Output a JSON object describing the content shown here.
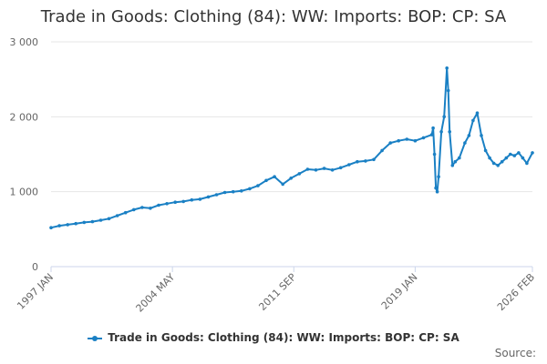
{
  "chart_data": {
    "type": "line",
    "title": "Trade in Goods: Clothing (84): WW: Imports: BOP: CP: SA",
    "xlabel": "",
    "ylabel": "",
    "ylim": [
      0,
      3000
    ],
    "y_ticks": [
      "0",
      "1 000",
      "2 000",
      "3 000"
    ],
    "x_ticks": [
      "1997 JAN",
      "2004 MAY",
      "2011 SEP",
      "2019 JAN",
      "2026 FEB"
    ],
    "grid": true,
    "legend_position": "bottom",
    "color": "#1a80c4",
    "series": [
      {
        "name": "Trade in Goods: Clothing (84): WW: Imports: BOP: CP: SA",
        "points": [
          [
            "1997-01",
            520
          ],
          [
            "1997-07",
            545
          ],
          [
            "1998-01",
            560
          ],
          [
            "1998-07",
            575
          ],
          [
            "1999-01",
            590
          ],
          [
            "1999-07",
            600
          ],
          [
            "2000-01",
            620
          ],
          [
            "2000-07",
            640
          ],
          [
            "2001-01",
            680
          ],
          [
            "2001-07",
            720
          ],
          [
            "2002-01",
            760
          ],
          [
            "2002-07",
            790
          ],
          [
            "2003-01",
            780
          ],
          [
            "2003-07",
            820
          ],
          [
            "2004-01",
            840
          ],
          [
            "2004-07",
            860
          ],
          [
            "2005-01",
            870
          ],
          [
            "2005-07",
            890
          ],
          [
            "2006-01",
            900
          ],
          [
            "2006-07",
            930
          ],
          [
            "2007-01",
            960
          ],
          [
            "2007-07",
            990
          ],
          [
            "2008-01",
            1000
          ],
          [
            "2008-07",
            1010
          ],
          [
            "2009-01",
            1040
          ],
          [
            "2009-07",
            1080
          ],
          [
            "2010-01",
            1150
          ],
          [
            "2010-07",
            1200
          ],
          [
            "2011-01",
            1100
          ],
          [
            "2011-07",
            1180
          ],
          [
            "2012-01",
            1240
          ],
          [
            "2012-07",
            1300
          ],
          [
            "2013-01",
            1290
          ],
          [
            "2013-07",
            1310
          ],
          [
            "2014-01",
            1290
          ],
          [
            "2014-07",
            1320
          ],
          [
            "2015-01",
            1360
          ],
          [
            "2015-07",
            1400
          ],
          [
            "2016-01",
            1410
          ],
          [
            "2016-07",
            1430
          ],
          [
            "2017-01",
            1550
          ],
          [
            "2017-07",
            1650
          ],
          [
            "2018-01",
            1680
          ],
          [
            "2018-07",
            1700
          ],
          [
            "2019-01",
            1680
          ],
          [
            "2019-07",
            1720
          ],
          [
            "2020-01",
            1760
          ],
          [
            "2020-02",
            1850
          ],
          [
            "2020-03",
            1500
          ],
          [
            "2020-04",
            1050
          ],
          [
            "2020-05",
            1000
          ],
          [
            "2020-06",
            1200
          ],
          [
            "2020-08",
            1800
          ],
          [
            "2020-10",
            2000
          ],
          [
            "2020-12",
            2650
          ],
          [
            "2021-01",
            2350
          ],
          [
            "2021-02",
            1800
          ],
          [
            "2021-04",
            1350
          ],
          [
            "2021-06",
            1400
          ],
          [
            "2021-09",
            1450
          ],
          [
            "2022-01",
            1650
          ],
          [
            "2022-04",
            1750
          ],
          [
            "2022-07",
            1950
          ],
          [
            "2022-10",
            2050
          ],
          [
            "2023-01",
            1750
          ],
          [
            "2023-04",
            1550
          ],
          [
            "2023-07",
            1450
          ],
          [
            "2023-10",
            1380
          ],
          [
            "2024-01",
            1350
          ],
          [
            "2024-04",
            1400
          ],
          [
            "2024-07",
            1450
          ],
          [
            "2024-10",
            1500
          ],
          [
            "2025-01",
            1480
          ],
          [
            "2025-04",
            1520
          ],
          [
            "2025-07",
            1450
          ],
          [
            "2025-10",
            1380
          ],
          [
            "2026-02",
            1520
          ]
        ]
      }
    ]
  },
  "source_label": "Source:"
}
